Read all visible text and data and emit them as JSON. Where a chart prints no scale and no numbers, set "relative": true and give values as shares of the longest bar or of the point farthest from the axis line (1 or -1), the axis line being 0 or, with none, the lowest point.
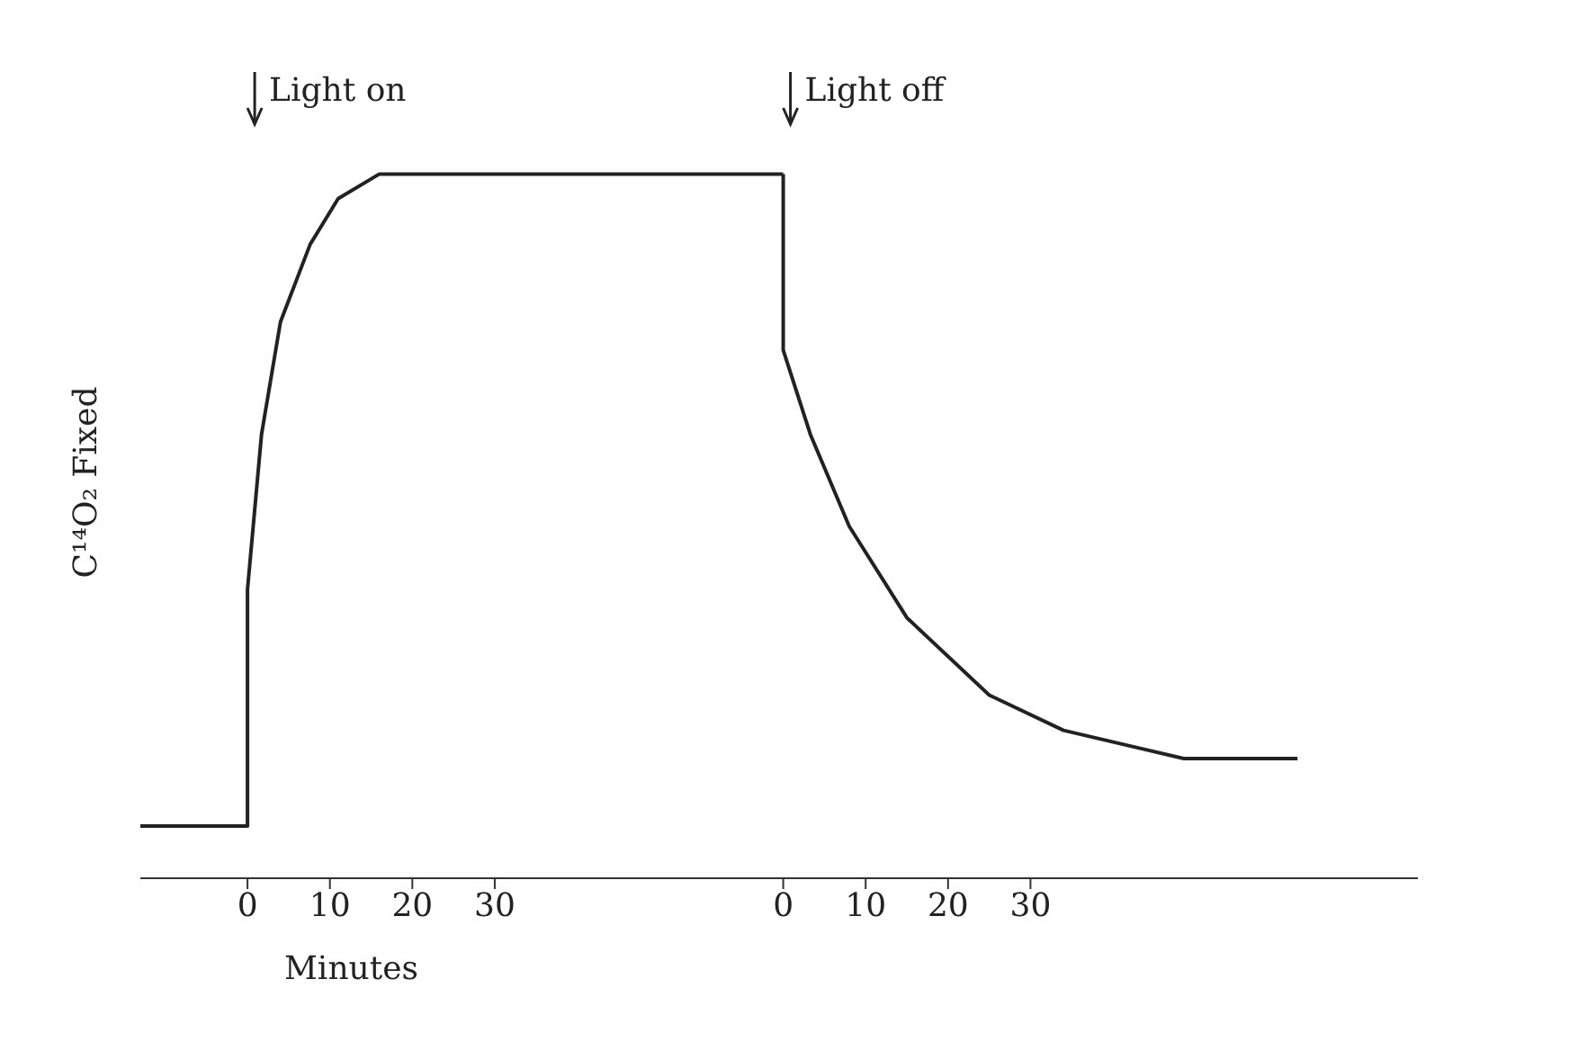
{
  "chart_data": {
    "type": "line",
    "relative": true,
    "xlabel": "Minutes",
    "ylabel": "C¹⁴O₂ Fixed",
    "xlim": [
      -13,
      142
    ],
    "xticks": [
      0,
      10,
      20,
      30
    ],
    "x2lim": [
      -78,
      77
    ],
    "x2ticks": [
      0,
      10,
      20,
      30
    ],
    "series": [
      {
        "color": "#222222",
        "x": [
          -13,
          0,
          0,
          1.7,
          4,
          7.6,
          11,
          16,
          65
        ],
        "values": [
          0.074,
          0.074,
          0.41,
          0.63,
          0.79,
          0.9,
          0.965,
          1,
          1
        ]
      },
      {
        "color": "#222222",
        "axis": "x2",
        "x": [
          0,
          0,
          3.3,
          8,
          15,
          25,
          34,
          48.6,
          62.4
        ],
        "values": [
          1,
          0.75,
          0.63,
          0.5,
          0.37,
          0.26,
          0.21,
          0.17,
          0.17
        ]
      }
    ],
    "annotations": [
      "Light on",
      "Light off"
    ],
    "marker": "none",
    "line_style": "solid"
  }
}
